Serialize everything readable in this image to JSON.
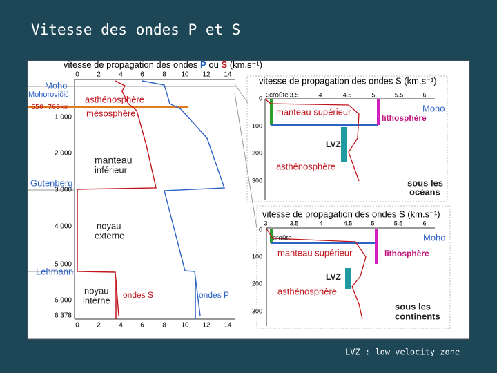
{
  "title": "Vitesse des ondes P et S",
  "main": {
    "heading": {
      "start": "vitesse de propagation des ondes",
      "p": "P",
      "middle": "ou",
      "s": "S",
      "unit": "(km.s⁻¹)"
    },
    "velocity_ticks": [
      0,
      2,
      4,
      6,
      8,
      10,
      12,
      14
    ],
    "depth_ticks": [
      "1 000",
      "2 000",
      "3 000",
      "4 000",
      "5 000",
      "6 000",
      "6 378"
    ],
    "labels": [
      "Moho",
      "Mohorovičić",
      "650-700km",
      "asthénosphère",
      "mésosphère",
      "manteau",
      "inférieur",
      "Gutenberg",
      "noyau",
      "externe",
      "Lehmann",
      "noyau",
      "interne",
      "ondes S",
      "ondes P"
    ]
  },
  "insets": [
    {
      "heading": "vitesse de propagation des ondes S (km.s⁻¹)",
      "velocity_ticks": [
        3,
        3.5,
        4,
        4.5,
        5,
        5.5,
        6
      ],
      "depth_ticks": [
        0,
        100,
        200,
        300
      ],
      "labels": [
        "croûte",
        "Moho",
        "manteau supérieur",
        "lithosphère",
        "LVZ",
        "asthénosphère",
        "sous les",
        "océans"
      ]
    },
    {
      "heading": "vitesse de propagation des ondes S (km.s⁻¹)",
      "velocity_ticks": [
        3,
        3.5,
        4,
        4.5,
        5,
        5.5,
        6
      ],
      "depth_ticks": [
        0,
        100,
        200,
        300
      ],
      "labels": [
        "croûte",
        "Moho",
        "manteau supérieur",
        "lithosphère",
        "LVZ",
        "asthénosphère",
        "sous les",
        "continents"
      ]
    }
  ],
  "footer": "LVZ : low velocity zone"
}
